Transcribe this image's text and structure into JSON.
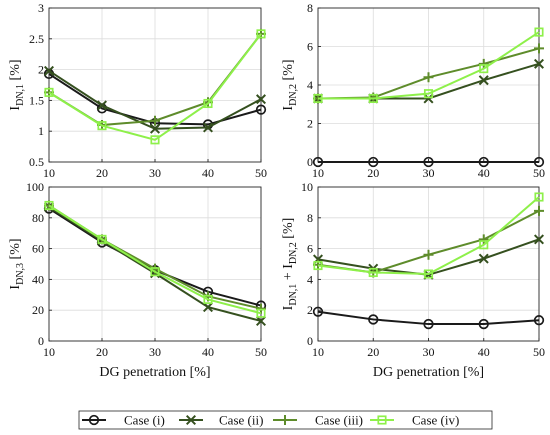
{
  "colors": {
    "case_i": "#1a1a1a",
    "case_ii": "#35501f",
    "case_iii": "#5e8c2b",
    "case_iv": "#8ef04a"
  },
  "legend": [
    "Case (i)",
    "Case (ii)",
    "Case (iii)",
    "Case (iv)"
  ],
  "chart_data": [
    {
      "type": "line",
      "ylabel_main": "I",
      "ylabel_sub": "DN,1",
      "ylabel_unit": " [%]",
      "xlabel": "",
      "x": [
        10,
        20,
        30,
        40,
        50
      ],
      "xticks": [
        "10",
        "20",
        "30",
        "40",
        "50"
      ],
      "ylim": [
        0.5,
        3
      ],
      "yticks": [
        "0.5",
        "1",
        "1.5",
        "2",
        "2.5",
        "3"
      ],
      "grid": true,
      "series": [
        {
          "name": "Case (i)",
          "marker": "circle",
          "values": [
            1.93,
            1.37,
            1.13,
            1.11,
            1.35
          ]
        },
        {
          "name": "Case (ii)",
          "marker": "x",
          "values": [
            1.98,
            1.42,
            1.04,
            1.06,
            1.52
          ]
        },
        {
          "name": "Case (iii)",
          "marker": "plus",
          "values": [
            1.63,
            1.1,
            1.17,
            1.47,
            2.58
          ]
        },
        {
          "name": "Case (iv)",
          "marker": "square",
          "values": [
            1.63,
            1.09,
            0.86,
            1.45,
            2.58
          ]
        }
      ]
    },
    {
      "type": "line",
      "ylabel_main": "I",
      "ylabel_sub": "DN,2",
      "ylabel_unit": " [%]",
      "xlabel": "",
      "x": [
        10,
        20,
        30,
        40,
        50
      ],
      "xticks": [
        "10",
        "20",
        "30",
        "40",
        "50"
      ],
      "ylim": [
        0,
        8
      ],
      "yticks": [
        "0",
        "2",
        "4",
        "6",
        "8"
      ],
      "grid": true,
      "series": [
        {
          "name": "Case (i)",
          "marker": "circle",
          "values": [
            0,
            0,
            0,
            0,
            0
          ]
        },
        {
          "name": "Case (ii)",
          "marker": "x",
          "values": [
            3.3,
            3.3,
            3.3,
            4.25,
            5.1
          ]
        },
        {
          "name": "Case (iii)",
          "marker": "plus",
          "values": [
            3.3,
            3.35,
            4.4,
            5.1,
            5.9
          ]
        },
        {
          "name": "Case (iv)",
          "marker": "square",
          "values": [
            3.3,
            3.3,
            3.55,
            4.85,
            6.75
          ]
        }
      ]
    },
    {
      "type": "line",
      "ylabel_main": "I",
      "ylabel_sub": "DN,3",
      "ylabel_unit": " [%]",
      "xlabel": "DG penetration [%]",
      "x": [
        10,
        20,
        30,
        40,
        50
      ],
      "xticks": [
        "10",
        "20",
        "30",
        "40",
        "50"
      ],
      "ylim": [
        0,
        100
      ],
      "yticks": [
        "0",
        "20",
        "40",
        "60",
        "80",
        "100"
      ],
      "grid": true,
      "series": [
        {
          "name": "Case (i)",
          "marker": "circle",
          "values": [
            86,
            64,
            46,
            32,
            23
          ]
        },
        {
          "name": "Case (ii)",
          "marker": "x",
          "values": [
            87,
            65,
            44,
            22,
            13
          ]
        },
        {
          "name": "Case (iii)",
          "marker": "plus",
          "values": [
            88,
            66,
            47,
            29,
            21
          ]
        },
        {
          "name": "Case (iv)",
          "marker": "square",
          "values": [
            88,
            66,
            45,
            27,
            18
          ]
        }
      ]
    },
    {
      "type": "line",
      "ylabel_main": "I",
      "ylabel_sub": "DN,1",
      "ylabel_mid": " + I",
      "ylabel_sub2": "DN,2",
      "ylabel_unit": " [%]",
      "xlabel": "DG penetration [%]",
      "x": [
        10,
        20,
        30,
        40,
        50
      ],
      "xticks": [
        "10",
        "20",
        "30",
        "40",
        "50"
      ],
      "ylim": [
        0,
        10
      ],
      "yticks": [
        "0",
        "2",
        "4",
        "6",
        "8",
        "10"
      ],
      "grid": true,
      "series": [
        {
          "name": "Case (i)",
          "marker": "circle",
          "values": [
            1.9,
            1.4,
            1.1,
            1.1,
            1.35
          ]
        },
        {
          "name": "Case (ii)",
          "marker": "x",
          "values": [
            5.3,
            4.7,
            4.3,
            5.35,
            6.6
          ]
        },
        {
          "name": "Case (iii)",
          "marker": "plus",
          "values": [
            4.95,
            4.45,
            5.6,
            6.6,
            8.45
          ]
        },
        {
          "name": "Case (iv)",
          "marker": "square",
          "values": [
            4.9,
            4.45,
            4.35,
            6.25,
            9.35
          ]
        }
      ]
    }
  ]
}
